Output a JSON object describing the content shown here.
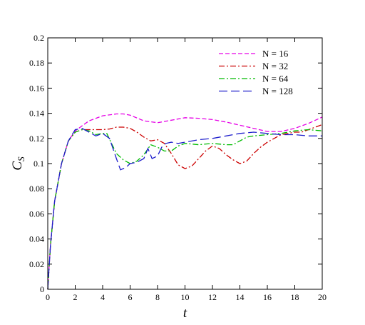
{
  "chart_data": {
    "type": "line",
    "title": "",
    "xlabel": "t",
    "ylabel": {
      "main": "C",
      "sub": "S"
    },
    "xlim": [
      0,
      20
    ],
    "ylim": [
      0,
      0.2
    ],
    "xticks": [
      "0",
      "2",
      "4",
      "6",
      "8",
      "10",
      "12",
      "14",
      "16",
      "18",
      "20"
    ],
    "yticks": [
      "0",
      "0.02",
      "0.04",
      "0.06",
      "0.08",
      "0.1",
      "0.12",
      "0.14",
      "0.16",
      "0.18",
      "0.2"
    ],
    "grid": false,
    "legend_position": "top-right",
    "series": [
      {
        "name": "N = 16",
        "color": "#e600e6",
        "dash": "dashed",
        "x": [
          0,
          0.2,
          0.5,
          1.0,
          1.5,
          2.0,
          2.5,
          3,
          4,
          5,
          5.5,
          6,
          7,
          8,
          9,
          10,
          11,
          12,
          13,
          14,
          15,
          16,
          17,
          18,
          19,
          20
        ],
        "y": [
          0.0,
          0.035,
          0.07,
          0.1,
          0.118,
          0.126,
          0.13,
          0.134,
          0.138,
          0.1395,
          0.1395,
          0.1385,
          0.134,
          0.1325,
          0.1345,
          0.1365,
          0.136,
          0.135,
          0.133,
          0.1305,
          0.128,
          0.1255,
          0.1255,
          0.128,
          0.132,
          0.137
        ]
      },
      {
        "name": "N = 32",
        "color": "#cc0000",
        "dash": "dashdot",
        "x": [
          0,
          0.2,
          0.5,
          1.0,
          1.5,
          2.0,
          2.5,
          3,
          3.5,
          4,
          4.5,
          5,
          5.5,
          6,
          6.5,
          7,
          7.5,
          8,
          8.5,
          9,
          9.5,
          10,
          10.5,
          11,
          11.5,
          12,
          12.5,
          13,
          13.5,
          14,
          14.5,
          15,
          15.5,
          16,
          16.5,
          17,
          17.5,
          18,
          18.5,
          19,
          19.5,
          20
        ],
        "y": [
          0.0,
          0.035,
          0.07,
          0.1,
          0.118,
          0.125,
          0.127,
          0.127,
          0.127,
          0.127,
          0.1275,
          0.129,
          0.129,
          0.128,
          0.125,
          0.121,
          0.118,
          0.119,
          0.116,
          0.108,
          0.099,
          0.096,
          0.098,
          0.104,
          0.11,
          0.114,
          0.112,
          0.107,
          0.103,
          0.1,
          0.102,
          0.108,
          0.113,
          0.117,
          0.12,
          0.123,
          0.124,
          0.125,
          0.125,
          0.127,
          0.129,
          0.131
        ]
      },
      {
        "name": "N = 64",
        "color": "#00bb00",
        "dash": "dashdot",
        "x": [
          0,
          0.2,
          0.5,
          1.0,
          1.5,
          2.0,
          2.5,
          3,
          3.5,
          4,
          4.3,
          4.6,
          5,
          5.5,
          6,
          6.5,
          7,
          7.5,
          8,
          8.5,
          9,
          9.5,
          10,
          11,
          12,
          13,
          13.5,
          14,
          14.5,
          15,
          16,
          17,
          18,
          19,
          20
        ],
        "y": [
          0.0,
          0.035,
          0.07,
          0.1,
          0.118,
          0.125,
          0.127,
          0.126,
          0.123,
          0.124,
          0.124,
          0.117,
          0.108,
          0.103,
          0.1,
          0.102,
          0.107,
          0.115,
          0.113,
          0.11,
          0.11,
          0.114,
          0.116,
          0.115,
          0.116,
          0.115,
          0.115,
          0.118,
          0.121,
          0.122,
          0.123,
          0.124,
          0.126,
          0.127,
          0.126
        ]
      },
      {
        "name": "N = 128",
        "color": "#1f1fcc",
        "dash": "longdash",
        "x": [
          0,
          0.2,
          0.5,
          1.0,
          1.5,
          2.0,
          2.5,
          3,
          3.5,
          4,
          4.5,
          5,
          5.3,
          5.7,
          6,
          6.5,
          7,
          7.3,
          7.6,
          8,
          8.3,
          8.6,
          9,
          9.5,
          10,
          11,
          12,
          13,
          14,
          15,
          16,
          17,
          18,
          19,
          20
        ],
        "y": [
          0.0,
          0.035,
          0.07,
          0.1,
          0.118,
          0.127,
          0.128,
          0.125,
          0.122,
          0.124,
          0.12,
          0.104,
          0.095,
          0.097,
          0.1,
          0.101,
          0.104,
          0.112,
          0.104,
          0.106,
          0.113,
          0.116,
          0.117,
          0.116,
          0.117,
          0.119,
          0.12,
          0.122,
          0.124,
          0.125,
          0.124,
          0.123,
          0.123,
          0.122,
          0.122
        ]
      }
    ]
  }
}
